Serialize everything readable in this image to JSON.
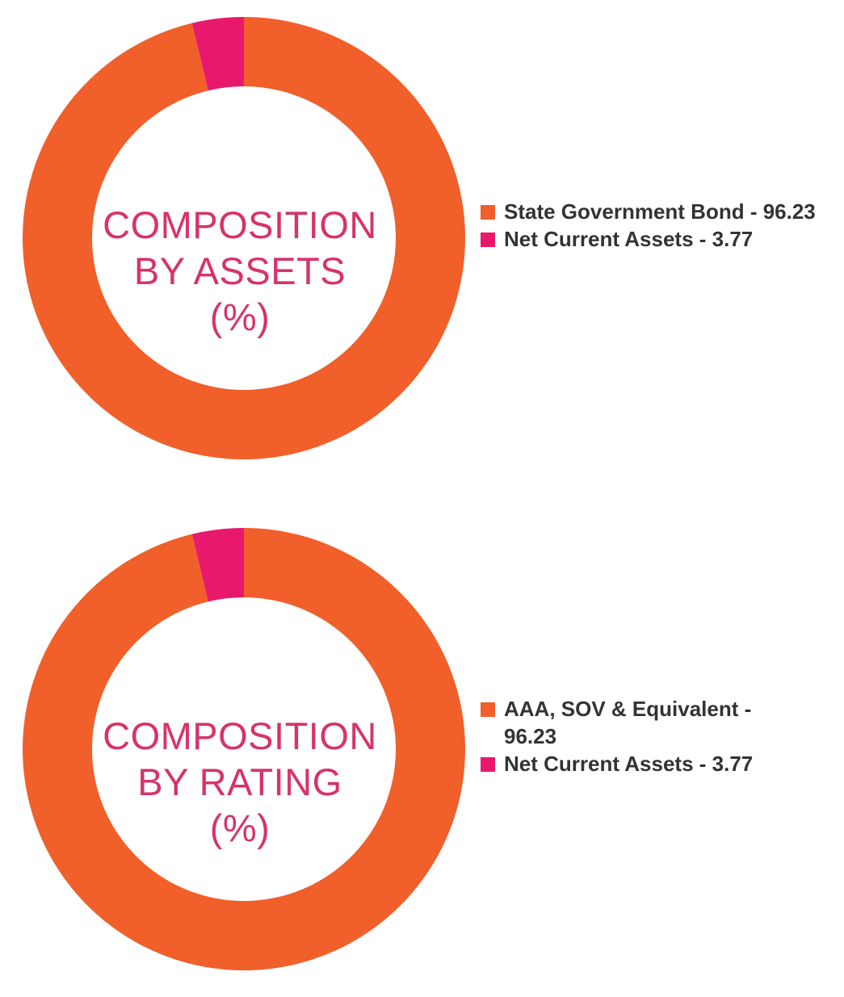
{
  "colors": {
    "orange": "#f15f2a",
    "pink": "#e8196d",
    "label": "#d6336c",
    "legend_text": "#333333"
  },
  "chart_data": [
    {
      "type": "pie",
      "title_lines": [
        "COMPOSITION",
        "BY ASSETS",
        "(%)"
      ],
      "slices": [
        {
          "label": "State Government Bond",
          "value": 96.23,
          "color": "#f15f2a",
          "legend_text": "State Government Bond - 96.23"
        },
        {
          "label": "Net Current Assets",
          "value": 3.77,
          "color": "#e8196d",
          "legend_text": "Net Current Assets - 3.77"
        }
      ],
      "legend_position": "right"
    },
    {
      "type": "pie",
      "title_lines": [
        "COMPOSITION",
        "BY RATING",
        "(%)"
      ],
      "slices": [
        {
          "label": "AAA, SOV & Equivalent",
          "value": 96.23,
          "color": "#f15f2a",
          "legend_text": "AAA, SOV & Equivalent - 96.23"
        },
        {
          "label": "Net Current Assets",
          "value": 3.77,
          "color": "#e8196d",
          "legend_text": "Net Current Assets - 3.77"
        }
      ],
      "legend_position": "right"
    }
  ]
}
